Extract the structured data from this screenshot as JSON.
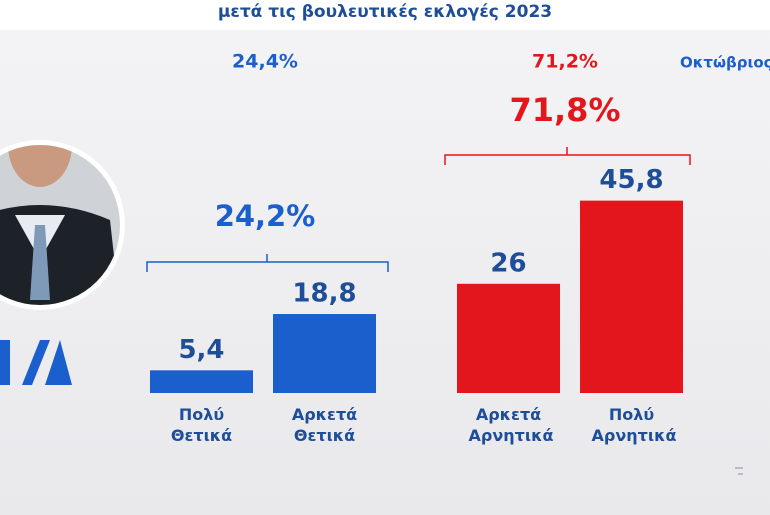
{
  "chart_data": {
    "type": "bar",
    "title": "μετά τις βουλευτικές εκλογές 2023",
    "categories": [
      "Πολύ Θετικά",
      "Αρκετά Θετικά",
      "Αρκετά Αρνητικά",
      "Πολύ Αρνητικά"
    ],
    "values": [
      5.4,
      18.8,
      26,
      45.8
    ],
    "value_labels": [
      "5,4",
      "18,8",
      "26",
      "45,8"
    ],
    "colors": [
      "#1a5fcc",
      "#1a5fcc",
      "#e3161b",
      "#e3161b"
    ],
    "ylim": [
      0,
      50
    ],
    "annotations": [
      {
        "text": "24,4%",
        "color": "#1a5fcc"
      },
      {
        "text": "71,2%",
        "color": "#e3161b"
      },
      {
        "text": "Οκτώβριος",
        "color": "#1a5fcc"
      },
      {
        "text": "71,8%",
        "color": "#e3161b"
      },
      {
        "text": "24,2%",
        "color": "#1a5fcc"
      }
    ]
  }
}
